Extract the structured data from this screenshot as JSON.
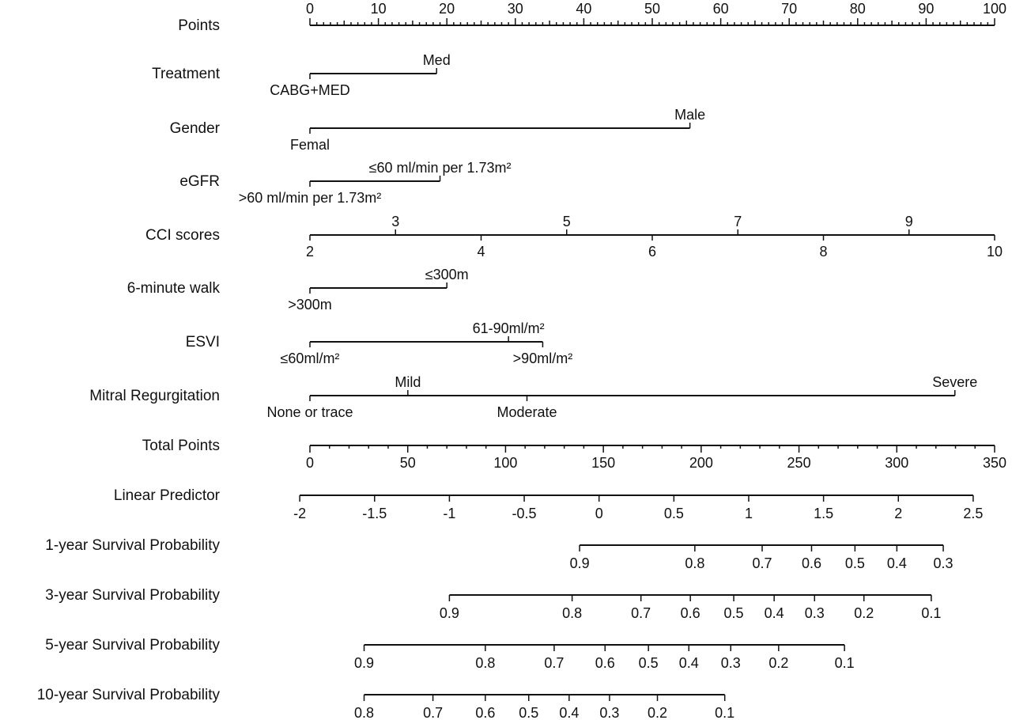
{
  "chart_data": {
    "type": "nomogram",
    "points_scale": {
      "min": 0,
      "max": 100
    },
    "rows": [
      {
        "label": "Points",
        "kind": "scale",
        "ticks": [
          {
            "v": 0,
            "label": "0"
          },
          {
            "v": 10,
            "label": "10"
          },
          {
            "v": 20,
            "label": "20"
          },
          {
            "v": 30,
            "label": "30"
          },
          {
            "v": 40,
            "label": "40"
          },
          {
            "v": 50,
            "label": "50"
          },
          {
            "v": 60,
            "label": "60"
          },
          {
            "v": 70,
            "label": "70"
          },
          {
            "v": 80,
            "label": "80"
          },
          {
            "v": 90,
            "label": "90"
          },
          {
            "v": 100,
            "label": "100"
          }
        ],
        "minor_step": 1,
        "medium_step": 5
      },
      {
        "label": "Treatment",
        "kind": "categorical",
        "levels": [
          {
            "label": "CABG+MED",
            "points": 0,
            "side": "below"
          },
          {
            "label": "Med",
            "points": 18.5,
            "side": "above"
          }
        ]
      },
      {
        "label": "Gender",
        "kind": "categorical",
        "levels": [
          {
            "label": "Femal",
            "points": 0,
            "side": "below"
          },
          {
            "label": "Male",
            "points": 55.5,
            "side": "above"
          }
        ]
      },
      {
        "label": "eGFR",
        "kind": "categorical",
        "levels": [
          {
            "label": ">60 ml/min per 1.73m²",
            "points": 0,
            "side": "below"
          },
          {
            "label": "≤60 ml/min per 1.73m²",
            "points": 19,
            "side": "above"
          }
        ]
      },
      {
        "label": "CCI scores",
        "kind": "continuous",
        "levels": [
          {
            "label": "2",
            "points": 0,
            "side": "below"
          },
          {
            "label": "3",
            "points": 12.5,
            "side": "above"
          },
          {
            "label": "4",
            "points": 25,
            "side": "below"
          },
          {
            "label": "5",
            "points": 37.5,
            "side": "above"
          },
          {
            "label": "6",
            "points": 50,
            "side": "below"
          },
          {
            "label": "7",
            "points": 62.5,
            "side": "above"
          },
          {
            "label": "8",
            "points": 75,
            "side": "below"
          },
          {
            "label": "9",
            "points": 87.5,
            "side": "above"
          },
          {
            "label": "10",
            "points": 100,
            "side": "below"
          }
        ]
      },
      {
        "label": "6-minute walk",
        "kind": "categorical",
        "levels": [
          {
            "label": ">300m",
            "points": 0,
            "side": "below"
          },
          {
            "label": "≤300m",
            "points": 20,
            "side": "above"
          }
        ]
      },
      {
        "label": "ESVI",
        "kind": "categorical",
        "levels": [
          {
            "label": "≤60ml/m²",
            "points": 0,
            "side": "below"
          },
          {
            "label": "61-90ml/m²",
            "points": 29,
            "side": "above"
          },
          {
            "label": ">90ml/m²",
            "points": 34,
            "side": "below"
          }
        ]
      },
      {
        "label": "Mitral Regurgitation",
        "kind": "categorical",
        "levels": [
          {
            "label": "None or trace",
            "points": 0,
            "side": "below"
          },
          {
            "label": "Mild",
            "points": 14.3,
            "side": "above"
          },
          {
            "label": "Moderate",
            "points": 31.7,
            "side": "below"
          },
          {
            "label": "Severe",
            "points": 94.2,
            "side": "above"
          }
        ]
      },
      {
        "label": "Total Points",
        "kind": "scale",
        "min": 0,
        "max": 350,
        "ticks": [
          {
            "v": 0,
            "label": "0"
          },
          {
            "v": 50,
            "label": "50"
          },
          {
            "v": 100,
            "label": "100"
          },
          {
            "v": 150,
            "label": "150"
          },
          {
            "v": 200,
            "label": "200"
          },
          {
            "v": 250,
            "label": "250"
          },
          {
            "v": 300,
            "label": "300"
          },
          {
            "v": 350,
            "label": "350"
          }
        ],
        "minor_step": 10
      },
      {
        "label": "Linear Predictor",
        "kind": "lp",
        "ticks": [
          {
            "v": -2,
            "label": "-2"
          },
          {
            "v": -1.5,
            "label": "-1.5"
          },
          {
            "v": -1,
            "label": "-1"
          },
          {
            "v": -0.5,
            "label": "-0.5"
          },
          {
            "v": 0,
            "label": "0"
          },
          {
            "v": 0.5,
            "label": "0.5"
          },
          {
            "v": 1,
            "label": "1"
          },
          {
            "v": 1.5,
            "label": "1.5"
          },
          {
            "v": 2,
            "label": "2"
          },
          {
            "v": 2.5,
            "label": "2.5"
          }
        ],
        "total_points_at_lp_minus_2": -5.2,
        "total_points_per_lp_unit": 76.5
      },
      {
        "label": "1-year Survival Probability",
        "kind": "lp_mapped",
        "ticks": [
          {
            "label": "0.9",
            "lp": -0.13
          },
          {
            "label": "0.8",
            "lp": 0.64
          },
          {
            "label": "0.7",
            "lp": 1.09
          },
          {
            "label": "0.6",
            "lp": 1.42
          },
          {
            "label": "0.5",
            "lp": 1.71
          },
          {
            "label": "0.4",
            "lp": 1.99
          },
          {
            "label": "0.3",
            "lp": 2.3
          }
        ]
      },
      {
        "label": "3-year Survival Probability",
        "kind": "lp_mapped",
        "ticks": [
          {
            "label": "0.9",
            "lp": -1.0
          },
          {
            "label": "0.8",
            "lp": -0.18
          },
          {
            "label": "0.7",
            "lp": 0.28
          },
          {
            "label": "0.6",
            "lp": 0.61
          },
          {
            "label": "0.5",
            "lp": 0.9
          },
          {
            "label": "0.4",
            "lp": 1.17
          },
          {
            "label": "0.3",
            "lp": 1.44
          },
          {
            "label": "0.2",
            "lp": 1.77
          },
          {
            "label": "0.1",
            "lp": 2.22
          }
        ]
      },
      {
        "label": "5-year Survival Probability",
        "kind": "lp_mapped",
        "ticks": [
          {
            "label": "0.9",
            "lp": -1.57
          },
          {
            "label": "0.8",
            "lp": -0.76
          },
          {
            "label": "0.7",
            "lp": -0.3
          },
          {
            "label": "0.6",
            "lp": 0.04
          },
          {
            "label": "0.5",
            "lp": 0.33
          },
          {
            "label": "0.4",
            "lp": 0.6
          },
          {
            "label": "0.3",
            "lp": 0.88
          },
          {
            "label": "0.2",
            "lp": 1.2
          },
          {
            "label": "0.1",
            "lp": 1.64
          }
        ]
      },
      {
        "label": "10-year Survival Probability",
        "kind": "lp_mapped",
        "ticks": [
          {
            "label": "0.8",
            "lp": -1.57
          },
          {
            "label": "0.7",
            "lp": -1.11
          },
          {
            "label": "0.6",
            "lp": -0.76
          },
          {
            "label": "0.5",
            "lp": -0.47
          },
          {
            "label": "0.4",
            "lp": -0.2
          },
          {
            "label": "0.3",
            "lp": 0.07
          },
          {
            "label": "0.2",
            "lp": 0.39
          },
          {
            "label": "0.1",
            "lp": 0.84
          }
        ]
      }
    ]
  }
}
